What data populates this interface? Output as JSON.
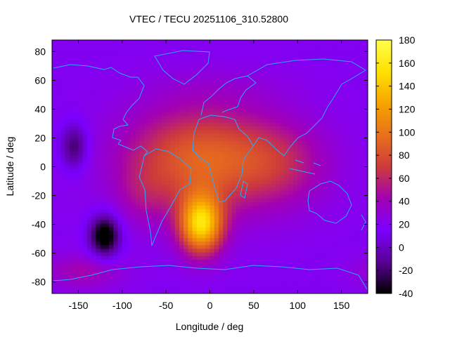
{
  "chart_data": {
    "type": "heatmap",
    "title": "VTEC / TECU 20251106_310.52800",
    "xlabel": "Longitude / deg",
    "ylabel": "Latitude / deg",
    "xlim": [
      -180,
      180
    ],
    "ylim": [
      -88,
      88
    ],
    "x_ticks": [
      -150,
      -100,
      -50,
      0,
      50,
      100,
      150
    ],
    "y_ticks": [
      -80,
      -60,
      -40,
      -20,
      0,
      20,
      40,
      60,
      80
    ],
    "colorbar": {
      "range": [
        -40,
        180
      ],
      "ticks": [
        -40,
        -20,
        0,
        20,
        40,
        60,
        80,
        100,
        120,
        140,
        160,
        180
      ],
      "palette": [
        "#000000",
        "#5a0096",
        "#7c00ff",
        "#a200b4",
        "#cd3b3b",
        "#e9711a",
        "#f6a400",
        "#ffe100",
        "#ffff4c"
      ]
    },
    "background_level": 20,
    "features": [
      {
        "lon": -10,
        "lat": 5,
        "sx": 60,
        "sy": 25,
        "amp": 70
      },
      {
        "lon": -10,
        "lat": -40,
        "sx": 17,
        "sy": 14,
        "amp": 125
      },
      {
        "lon": 80,
        "lat": 2,
        "sx": 40,
        "sy": 20,
        "amp": 28
      },
      {
        "lon": -75,
        "lat": -20,
        "sx": 20,
        "sy": 15,
        "amp": 14
      },
      {
        "lon": -145,
        "lat": -73,
        "sx": 30,
        "sy": 8,
        "amp": 24
      },
      {
        "lon": -120,
        "lat": -48,
        "sx": 12,
        "sy": 10,
        "amp": -72
      },
      {
        "lon": -155,
        "lat": 14,
        "sx": 11,
        "sy": 11,
        "amp": -42
      },
      {
        "lon": 10,
        "lat": 55,
        "sx": 60,
        "sy": 10,
        "amp": 6
      }
    ]
  }
}
